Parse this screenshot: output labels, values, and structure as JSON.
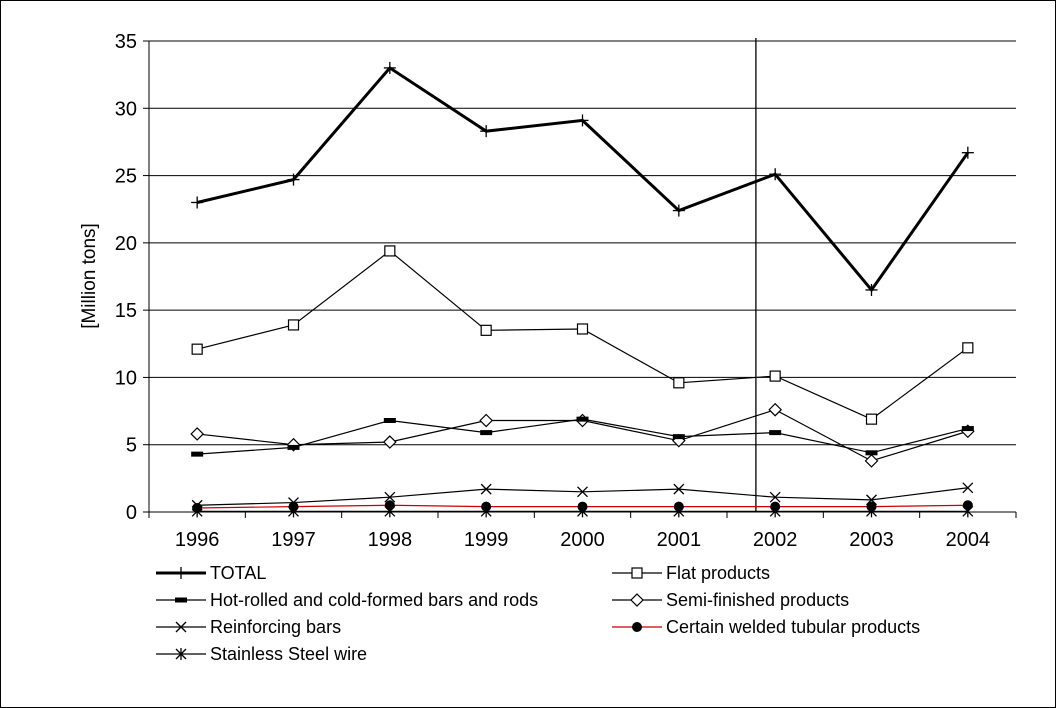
{
  "chart_data": {
    "type": "line",
    "title": "",
    "xlabel": "",
    "ylabel": "[Million tons]",
    "categories": [
      "1996",
      "1997",
      "1998",
      "1999",
      "2000",
      "2001",
      "2002",
      "2003",
      "2004"
    ],
    "ylim": [
      0,
      35
    ],
    "yticks": [
      "0",
      "5",
      "10",
      "15",
      "20",
      "25",
      "30",
      "35"
    ],
    "grid": "horizontal",
    "vertical_marker_between": [
      "2001",
      "2002"
    ],
    "legend_position": "bottom",
    "series": [
      {
        "name": "TOTAL",
        "marker": "plus",
        "color": "#000000",
        "width": "thick",
        "values": [
          23.0,
          24.7,
          33.0,
          28.3,
          29.1,
          22.4,
          25.1,
          16.5,
          26.7
        ]
      },
      {
        "name": "Flat products",
        "marker": "square",
        "color": "#000000",
        "width": "thin",
        "values": [
          12.1,
          13.9,
          19.4,
          13.5,
          13.6,
          9.6,
          10.1,
          6.9,
          12.2
        ]
      },
      {
        "name": "Hot-rolled and cold-formed bars and rods",
        "marker": "dash",
        "color": "#000000",
        "width": "thin",
        "values": [
          4.3,
          4.8,
          6.8,
          5.9,
          6.9,
          5.6,
          5.9,
          4.4,
          6.2
        ]
      },
      {
        "name": "Semi-finished products",
        "marker": "diamond",
        "color": "#000000",
        "width": "thin",
        "values": [
          5.8,
          5.0,
          5.2,
          6.8,
          6.8,
          5.3,
          7.6,
          3.8,
          6.0
        ]
      },
      {
        "name": "Reinforcing bars",
        "marker": "x",
        "color": "#000000",
        "width": "thin",
        "values": [
          0.5,
          0.7,
          1.1,
          1.7,
          1.5,
          1.7,
          1.1,
          0.9,
          1.8
        ]
      },
      {
        "name": "Certain welded tubular products",
        "marker": "circle",
        "color": "#cc0000",
        "width": "thin",
        "values": [
          0.3,
          0.4,
          0.5,
          0.4,
          0.4,
          0.4,
          0.4,
          0.4,
          0.5
        ]
      },
      {
        "name": "Stainless Steel wire",
        "marker": "star",
        "color": "#000000",
        "width": "thin",
        "values": [
          0.05,
          0.05,
          0.05,
          0.05,
          0.05,
          0.05,
          0.05,
          0.05,
          0.05
        ]
      }
    ]
  }
}
